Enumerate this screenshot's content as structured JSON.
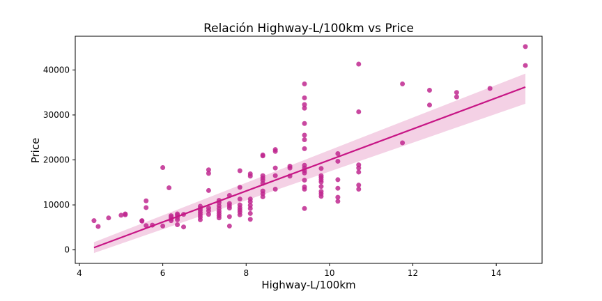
{
  "chart_data": {
    "type": "scatter",
    "title": "Relación Highway-L/100km vs Price",
    "xlabel": "Highway-L/100km",
    "ylabel": "Price",
    "xlim": [
      3.9,
      15.1
    ],
    "ylim": [
      -3000,
      47500
    ],
    "xticks": [
      4,
      6,
      8,
      10,
      12,
      14
    ],
    "yticks": [
      0,
      10000,
      20000,
      30000,
      40000
    ],
    "grid": false,
    "colors": {
      "point": "#c0288f",
      "line": "#c71585",
      "band": "#f1c6df"
    },
    "regression": {
      "x": [
        4.35,
        14.7
      ],
      "y": [
        500,
        36200
      ],
      "ci_lower": [
        -700,
        32500
      ],
      "ci_upper": [
        1700,
        39200
      ]
    },
    "points": [
      [
        4.35,
        6500
      ],
      [
        4.45,
        5200
      ],
      [
        4.7,
        7100
      ],
      [
        5.0,
        7700
      ],
      [
        5.1,
        7800
      ],
      [
        5.1,
        8000
      ],
      [
        5.5,
        6400
      ],
      [
        5.5,
        6500
      ],
      [
        5.6,
        9400
      ],
      [
        5.6,
        10900
      ],
      [
        5.6,
        5400
      ],
      [
        5.75,
        5500
      ],
      [
        6.0,
        18300
      ],
      [
        6.0,
        5300
      ],
      [
        6.15,
        13800
      ],
      [
        6.2,
        6500
      ],
      [
        6.2,
        6900
      ],
      [
        6.2,
        7300
      ],
      [
        6.2,
        7600
      ],
      [
        6.35,
        6700
      ],
      [
        6.35,
        7200
      ],
      [
        6.35,
        7700
      ],
      [
        6.35,
        8000
      ],
      [
        6.35,
        5600
      ],
      [
        6.5,
        7900
      ],
      [
        6.5,
        5100
      ],
      [
        6.9,
        6700
      ],
      [
        6.9,
        7300
      ],
      [
        6.9,
        7800
      ],
      [
        6.9,
        8300
      ],
      [
        6.9,
        8800
      ],
      [
        6.9,
        9200
      ],
      [
        6.9,
        9700
      ],
      [
        7.1,
        7900
      ],
      [
        7.1,
        8700
      ],
      [
        7.1,
        9300
      ],
      [
        7.1,
        13200
      ],
      [
        7.1,
        17000
      ],
      [
        7.1,
        17800
      ],
      [
        7.35,
        7100
      ],
      [
        7.35,
        7600
      ],
      [
        7.35,
        8100
      ],
      [
        7.35,
        8600
      ],
      [
        7.35,
        9200
      ],
      [
        7.35,
        9800
      ],
      [
        7.35,
        10500
      ],
      [
        7.35,
        11000
      ],
      [
        7.6,
        5300
      ],
      [
        7.6,
        7400
      ],
      [
        7.6,
        9300
      ],
      [
        7.6,
        9800
      ],
      [
        7.6,
        10300
      ],
      [
        7.6,
        12100
      ],
      [
        7.85,
        7800
      ],
      [
        7.85,
        8400
      ],
      [
        7.85,
        8900
      ],
      [
        7.85,
        9400
      ],
      [
        7.85,
        10000
      ],
      [
        7.85,
        11300
      ],
      [
        7.85,
        13900
      ],
      [
        7.85,
        17600
      ],
      [
        8.1,
        6800
      ],
      [
        8.1,
        8100
      ],
      [
        8.1,
        9200
      ],
      [
        8.1,
        9900
      ],
      [
        8.1,
        10700
      ],
      [
        8.1,
        11300
      ],
      [
        8.1,
        16400
      ],
      [
        8.1,
        16900
      ],
      [
        8.4,
        11800
      ],
      [
        8.4,
        12500
      ],
      [
        8.4,
        13100
      ],
      [
        8.4,
        14800
      ],
      [
        8.4,
        15500
      ],
      [
        8.4,
        16000
      ],
      [
        8.4,
        16500
      ],
      [
        8.4,
        20900
      ],
      [
        8.4,
        21100
      ],
      [
        8.7,
        13500
      ],
      [
        8.7,
        16500
      ],
      [
        8.7,
        18200
      ],
      [
        8.7,
        21900
      ],
      [
        8.7,
        22300
      ],
      [
        9.05,
        16400
      ],
      [
        9.05,
        18200
      ],
      [
        9.05,
        18600
      ],
      [
        9.4,
        9200
      ],
      [
        9.4,
        13500
      ],
      [
        9.4,
        14000
      ],
      [
        9.4,
        15500
      ],
      [
        9.4,
        17100
      ],
      [
        9.4,
        17600
      ],
      [
        9.4,
        18200
      ],
      [
        9.4,
        18800
      ],
      [
        9.4,
        22500
      ],
      [
        9.4,
        24500
      ],
      [
        9.4,
        25500
      ],
      [
        9.4,
        28100
      ],
      [
        9.4,
        31500
      ],
      [
        9.4,
        32300
      ],
      [
        9.4,
        33800
      ],
      [
        9.4,
        36900
      ],
      [
        9.8,
        11900
      ],
      [
        9.8,
        12500
      ],
      [
        9.8,
        13000
      ],
      [
        9.8,
        14100
      ],
      [
        9.8,
        15100
      ],
      [
        9.8,
        15600
      ],
      [
        9.8,
        16100
      ],
      [
        9.8,
        16500
      ],
      [
        9.8,
        18100
      ],
      [
        10.2,
        10800
      ],
      [
        10.2,
        11700
      ],
      [
        10.2,
        13700
      ],
      [
        10.2,
        15600
      ],
      [
        10.2,
        19700
      ],
      [
        10.2,
        21400
      ],
      [
        10.7,
        13500
      ],
      [
        10.7,
        14400
      ],
      [
        10.7,
        17300
      ],
      [
        10.7,
        18200
      ],
      [
        10.7,
        18900
      ],
      [
        10.7,
        30700
      ],
      [
        10.7,
        41300
      ],
      [
        11.75,
        23800
      ],
      [
        11.75,
        36900
      ],
      [
        12.4,
        32200
      ],
      [
        12.4,
        35500
      ],
      [
        13.05,
        34000
      ],
      [
        13.05,
        35000
      ],
      [
        13.85,
        35900
      ],
      [
        14.7,
        41000
      ],
      [
        14.7,
        45200
      ]
    ]
  }
}
